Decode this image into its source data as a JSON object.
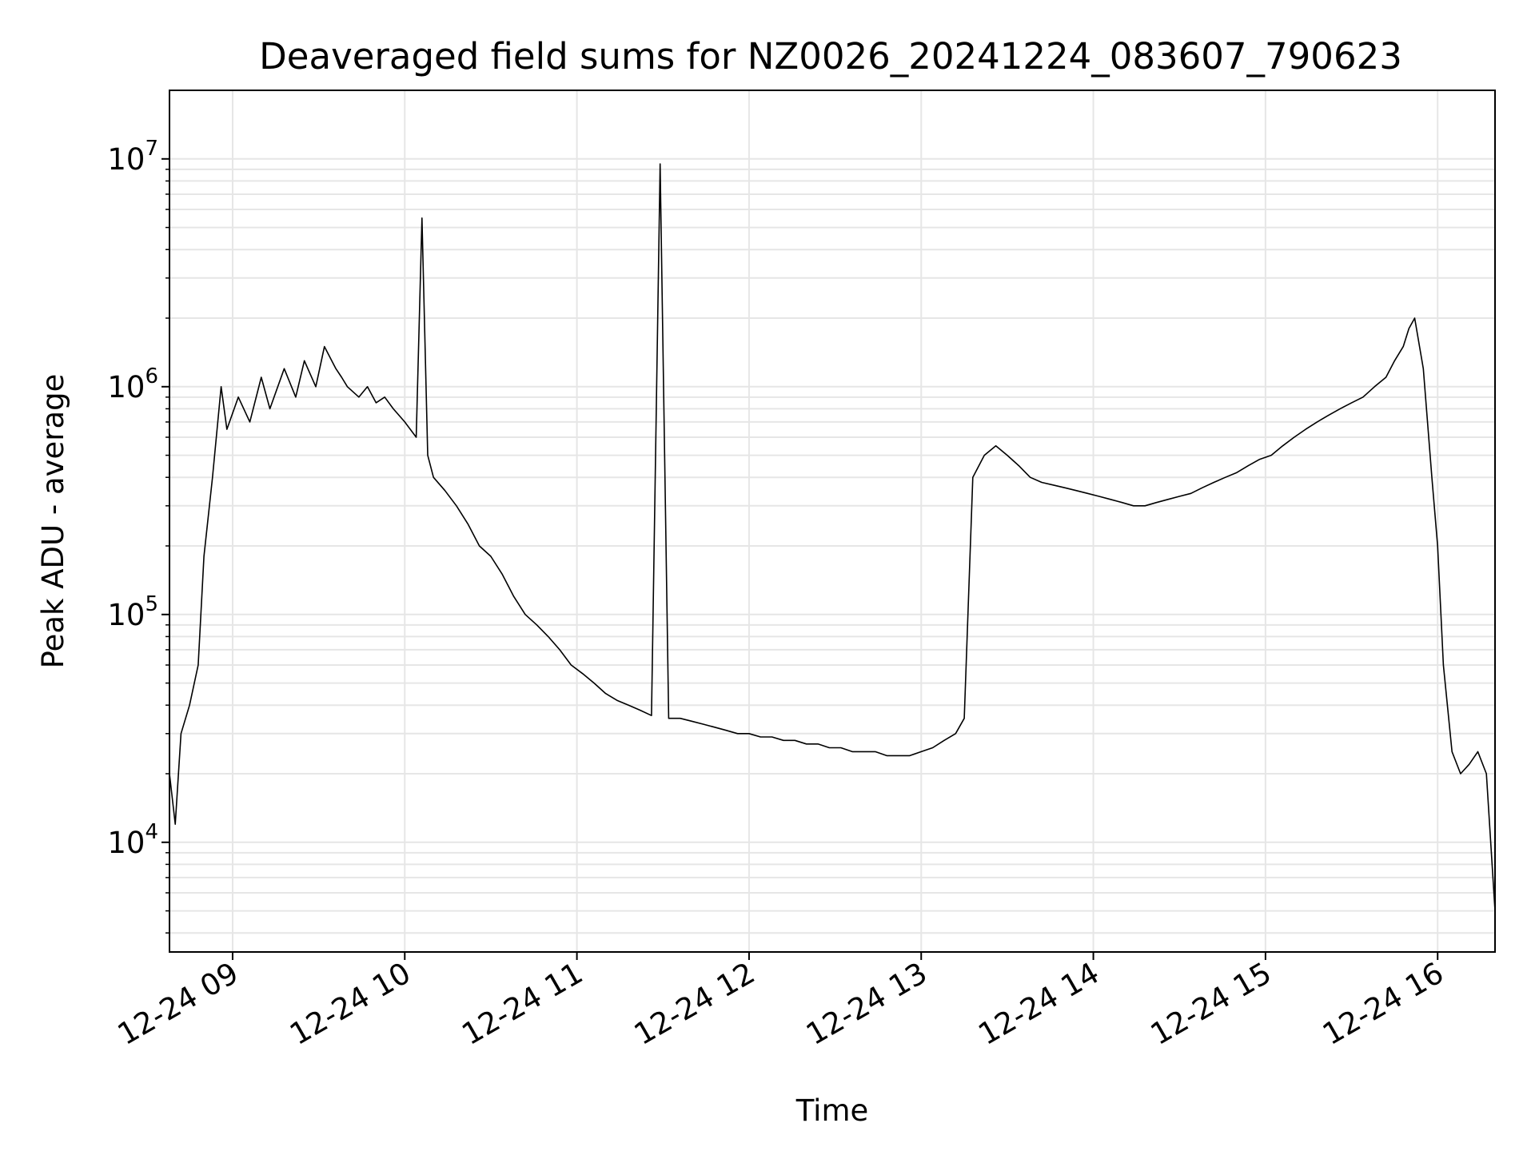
{
  "chart_data": {
    "type": "line",
    "title": "Deaveraged field sums for NZ0026_20241224_083607_790623",
    "xlabel": "Time",
    "ylabel": "Peak ADU - average",
    "yscale": "log",
    "grid": true,
    "x_range": [
      "2024-12-24 08:38",
      "2024-12-24 16:20"
    ],
    "ylim": [
      3300,
      20000000
    ],
    "x_ticks": [
      {
        "time": "2024-12-24 09:00",
        "label": "12-24 09"
      },
      {
        "time": "2024-12-24 10:00",
        "label": "12-24 10"
      },
      {
        "time": "2024-12-24 11:00",
        "label": "12-24 11"
      },
      {
        "time": "2024-12-24 12:00",
        "label": "12-24 12"
      },
      {
        "time": "2024-12-24 13:00",
        "label": "12-24 13"
      },
      {
        "time": "2024-12-24 14:00",
        "label": "12-24 14"
      },
      {
        "time": "2024-12-24 15:00",
        "label": "12-24 15"
      },
      {
        "time": "2024-12-24 16:00",
        "label": "12-24 16"
      }
    ],
    "y_ticks": [
      {
        "value": 10000,
        "base": "10",
        "exp": "4"
      },
      {
        "value": 100000,
        "base": "10",
        "exp": "5"
      },
      {
        "value": 1000000,
        "base": "10",
        "exp": "6"
      },
      {
        "value": 10000000,
        "base": "10",
        "exp": "7"
      }
    ],
    "line_color": "#000000",
    "grid_color": "#e6e6e6",
    "series": [
      {
        "x": [
          "2024-12-24 08:38",
          "2024-12-24 08:40",
          "2024-12-24 08:42",
          "2024-12-24 08:45",
          "2024-12-24 08:48",
          "2024-12-24 08:50",
          "2024-12-24 08:53",
          "2024-12-24 08:56",
          "2024-12-24 08:58",
          "2024-12-24 09:02",
          "2024-12-24 09:06",
          "2024-12-24 09:10",
          "2024-12-24 09:13",
          "2024-12-24 09:18",
          "2024-12-24 09:22",
          "2024-12-24 09:25",
          "2024-12-24 09:29",
          "2024-12-24 09:32",
          "2024-12-24 09:36",
          "2024-12-24 09:38",
          "2024-12-24 09:40",
          "2024-12-24 09:44",
          "2024-12-24 09:47",
          "2024-12-24 09:50",
          "2024-12-24 09:53",
          "2024-12-24 09:56",
          "2024-12-24 10:00",
          "2024-12-24 10:04",
          "2024-12-24 10:06",
          "2024-12-24 10:08",
          "2024-12-24 10:10",
          "2024-12-24 10:14",
          "2024-12-24 10:18",
          "2024-12-24 10:22",
          "2024-12-24 10:26",
          "2024-12-24 10:30",
          "2024-12-24 10:34",
          "2024-12-24 10:38",
          "2024-12-24 10:42",
          "2024-12-24 10:46",
          "2024-12-24 10:50",
          "2024-12-24 10:54",
          "2024-12-24 10:58",
          "2024-12-24 11:02",
          "2024-12-24 11:06",
          "2024-12-24 11:10",
          "2024-12-24 11:14",
          "2024-12-24 11:18",
          "2024-12-24 11:22",
          "2024-12-24 11:26",
          "2024-12-24 11:29",
          "2024-12-24 11:32",
          "2024-12-24 11:36",
          "2024-12-24 11:40",
          "2024-12-24 11:44",
          "2024-12-24 11:48",
          "2024-12-24 11:52",
          "2024-12-24 11:56",
          "2024-12-24 12:00",
          "2024-12-24 12:04",
          "2024-12-24 12:08",
          "2024-12-24 12:12",
          "2024-12-24 12:16",
          "2024-12-24 12:20",
          "2024-12-24 12:24",
          "2024-12-24 12:28",
          "2024-12-24 12:32",
          "2024-12-24 12:36",
          "2024-12-24 12:40",
          "2024-12-24 12:44",
          "2024-12-24 12:48",
          "2024-12-24 12:52",
          "2024-12-24 12:56",
          "2024-12-24 13:00",
          "2024-12-24 13:04",
          "2024-12-24 13:08",
          "2024-12-24 13:12",
          "2024-12-24 13:15",
          "2024-12-24 13:18",
          "2024-12-24 13:22",
          "2024-12-24 13:26",
          "2024-12-24 13:30",
          "2024-12-24 13:34",
          "2024-12-24 13:38",
          "2024-12-24 13:42",
          "2024-12-24 13:46",
          "2024-12-24 13:50",
          "2024-12-24 13:54",
          "2024-12-24 13:58",
          "2024-12-24 14:02",
          "2024-12-24 14:06",
          "2024-12-24 14:10",
          "2024-12-24 14:14",
          "2024-12-24 14:18",
          "2024-12-24 14:22",
          "2024-12-24 14:26",
          "2024-12-24 14:30",
          "2024-12-24 14:34",
          "2024-12-24 14:38",
          "2024-12-24 14:42",
          "2024-12-24 14:46",
          "2024-12-24 14:50",
          "2024-12-24 14:54",
          "2024-12-24 14:58",
          "2024-12-24 15:02",
          "2024-12-24 15:06",
          "2024-12-24 15:10",
          "2024-12-24 15:14",
          "2024-12-24 15:18",
          "2024-12-24 15:22",
          "2024-12-24 15:26",
          "2024-12-24 15:30",
          "2024-12-24 15:34",
          "2024-12-24 15:38",
          "2024-12-24 15:42",
          "2024-12-24 15:45",
          "2024-12-24 15:48",
          "2024-12-24 15:50",
          "2024-12-24 15:52",
          "2024-12-24 15:55",
          "2024-12-24 15:58",
          "2024-12-24 16:00",
          "2024-12-24 16:02",
          "2024-12-24 16:05",
          "2024-12-24 16:08",
          "2024-12-24 16:11",
          "2024-12-24 16:14",
          "2024-12-24 16:17",
          "2024-12-24 16:20"
        ],
        "y": [
          20000,
          12000,
          30000,
          40000,
          60000,
          180000,
          400000,
          1000000,
          650000,
          900000,
          700000,
          1100000,
          800000,
          1200000,
          900000,
          1300000,
          1000000,
          1500000,
          1200000,
          1100000,
          1000000,
          900000,
          1000000,
          850000,
          900000,
          800000,
          700000,
          600000,
          5500000,
          500000,
          400000,
          350000,
          300000,
          250000,
          200000,
          180000,
          150000,
          120000,
          100000,
          90000,
          80000,
          70000,
          60000,
          55000,
          50000,
          45000,
          42000,
          40000,
          38000,
          36000,
          9500000,
          35000,
          35000,
          34000,
          33000,
          32000,
          31000,
          30000,
          30000,
          29000,
          29000,
          28000,
          28000,
          27000,
          27000,
          26000,
          26000,
          25000,
          25000,
          25000,
          24000,
          24000,
          24000,
          25000,
          26000,
          28000,
          30000,
          35000,
          400000,
          500000,
          550000,
          500000,
          450000,
          400000,
          380000,
          370000,
          360000,
          350000,
          340000,
          330000,
          320000,
          310000,
          300000,
          300000,
          310000,
          320000,
          330000,
          340000,
          360000,
          380000,
          400000,
          420000,
          450000,
          480000,
          500000,
          550000,
          600000,
          650000,
          700000,
          750000,
          800000,
          850000,
          900000,
          1000000,
          1100000,
          1300000,
          1500000,
          1800000,
          2000000,
          1200000,
          400000,
          200000,
          60000,
          25000,
          20000,
          22000,
          25000,
          20000,
          5000
        ]
      }
    ]
  }
}
